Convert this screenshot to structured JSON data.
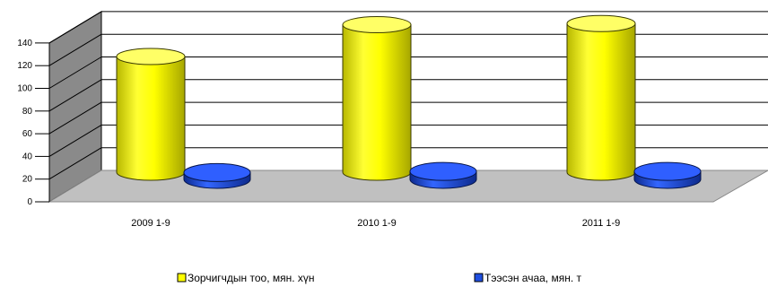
{
  "chart_data": {
    "type": "bar",
    "categories": [
      "2009 1-9",
      "2010 1-9",
      "2011 1-9"
    ],
    "series": [
      {
        "name": "Зорчигчдын тоо, мян. хүн",
        "values": [
          102,
          130,
          131
        ],
        "color": "#ffff00"
      },
      {
        "name": "Тээсэн ачаа, мян. т",
        "values": [
          6,
          7,
          7
        ],
        "color": "#1f4fe0"
      }
    ],
    "title": "",
    "xlabel": "",
    "ylabel": "",
    "ylim": [
      0,
      140
    ],
    "yticks": [
      0,
      20,
      40,
      60,
      80,
      100,
      120,
      140
    ],
    "grid": true,
    "legend_position": "bottom",
    "three_d": true
  }
}
